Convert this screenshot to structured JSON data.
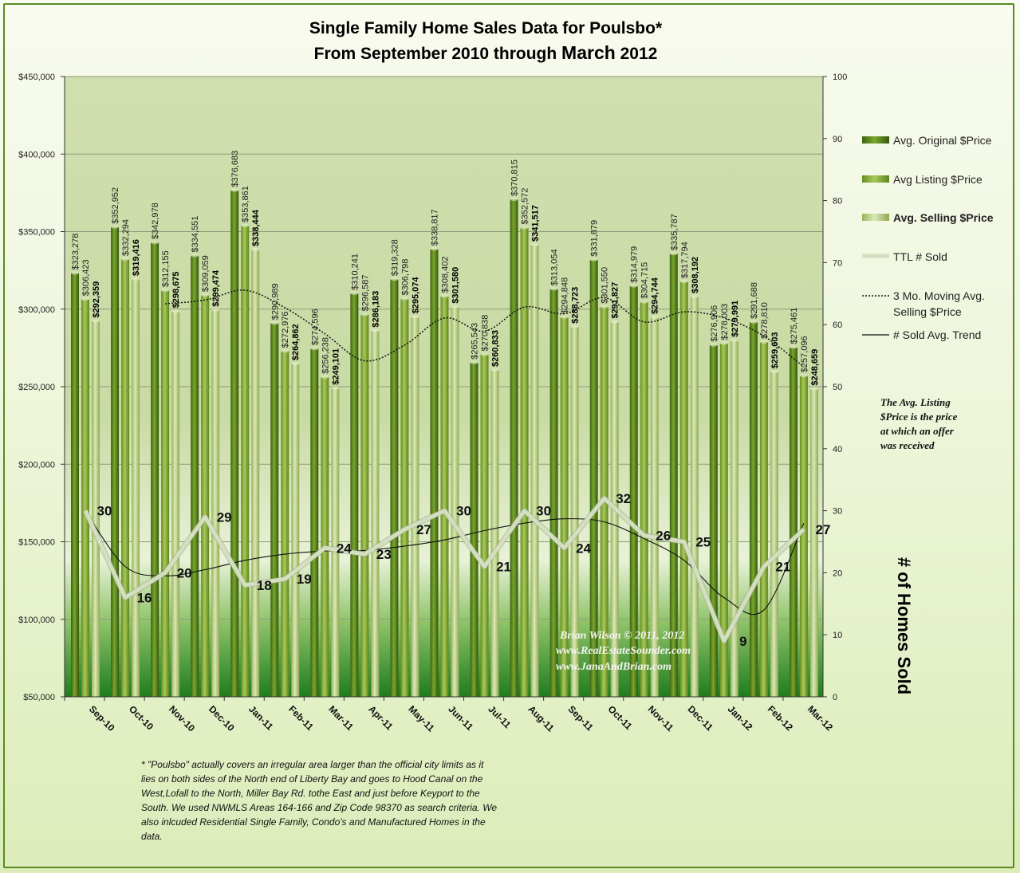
{
  "chart_data": {
    "type": "bar",
    "title_line1": "Single Family Home Sales Data for Poulsbo*",
    "title_line2_prefix": "From September 2010 through ",
    "title_line2_emph": "March",
    "title_line2_suffix": " 2012",
    "categories": [
      "Sep-10",
      "Oct-10",
      "Nov-10",
      "Dec-10",
      "Jan-11",
      "Feb-11",
      "Mar-11",
      "Apr-11",
      "May-11",
      "Jun-11",
      "Jul-11",
      "Aug-11",
      "Sep-11",
      "Oct-11",
      "Nov-11",
      "Dec-11",
      "Jan-12",
      "Feb-12",
      "Mar-12"
    ],
    "ylim_left": [
      50000,
      450000
    ],
    "yticks_left": [
      "$50,000",
      "$100,000",
      "$150,000",
      "$200,000",
      "$250,000",
      "$300,000",
      "$350,000",
      "$400,000",
      "$450,000"
    ],
    "ylim_right": [
      0,
      100
    ],
    "yticks_right": [
      "0",
      "10",
      "20",
      "30",
      "40",
      "50",
      "60",
      "70",
      "80",
      "90",
      "100"
    ],
    "ylabel_right": "# of Homes Sold",
    "grid": true,
    "legend_position": "right",
    "series": [
      {
        "name": "Avg. Original $Price",
        "color": "#5f8a1c",
        "values": [
          323278,
          352952,
          342978,
          334551,
          376683,
          290989,
          274596,
          310241,
          319328,
          338817,
          265543,
          370815,
          313054,
          331879,
          314979,
          335787,
          276906,
          291688,
          275461
        ],
        "labels": [
          "$323,278",
          "$352,952",
          "$342,978",
          "$334,551",
          "$376,683",
          "$290,989",
          "$274,596",
          "$310,241",
          "$319,328",
          "$338,817",
          "$265,543",
          "$370,815",
          "$313,054",
          "$331,879",
          "$314,979",
          "$335,787",
          "$276,906",
          "$291,688",
          "$275,461"
        ]
      },
      {
        "name": "Avg Listing $Price",
        "color": "#8fb43a",
        "values": [
          306423,
          332294,
          312155,
          309059,
          353861,
          272976,
          256238,
          296587,
          306798,
          308402,
          270838,
          352572,
          294848,
          301550,
          304715,
          317794,
          278003,
          278810,
          257096
        ],
        "labels": [
          "$306,423",
          "$332,294",
          "$312,155",
          "$309,059",
          "$353,861",
          "$272,976",
          "$256,238",
          "$296,587",
          "$306,798",
          "$308,402",
          "$270,838",
          "$352,572",
          "$294,848",
          "$301,550",
          "$304,715",
          "$317,794",
          "$278,003",
          "$278,810",
          "$257,096"
        ]
      },
      {
        "name": "Avg. Selling $Price",
        "color": "#c3d98a",
        "values": [
          292359,
          319416,
          298675,
          299474,
          338444,
          264862,
          249101,
          286183,
          295074,
          301580,
          260833,
          341517,
          288723,
          291827,
          294744,
          308192,
          279991,
          259603,
          248659
        ],
        "labels": [
          "$292,359",
          "$319,416",
          "$298,675",
          "$299,474",
          "$338,444",
          "$264,862",
          "$249,101",
          "$286,183",
          "$295,074",
          "$301,580",
          "$260,833",
          "$341,517",
          "$288,723",
          "$291,827",
          "$294,744",
          "$308,192",
          "$279,991",
          "$259,603",
          "$248,659"
        ]
      },
      {
        "name": "TTL # Sold",
        "axis": "right",
        "color": "#d4dec0",
        "values": [
          30,
          16,
          20,
          29,
          18,
          19,
          24,
          23,
          27,
          30,
          21,
          30,
          24,
          32,
          26,
          25,
          9,
          21,
          27
        ],
        "labels": [
          "30",
          "16",
          "20",
          "29",
          "18",
          "19",
          "24",
          "23",
          "27",
          "30",
          "21",
          "30",
          "24",
          "32",
          "26",
          "25",
          "9",
          "21",
          "27"
        ]
      },
      {
        "name": "3 Mo. Moving Avg. Selling $Price",
        "type": "dotted-line",
        "values": [
          null,
          null,
          303483,
          305855,
          312198,
          300927,
          284136,
          266715,
          276786,
          294279,
          285829,
          301310,
          297024,
          307356,
          291765,
          298254,
          294309,
          282595,
          262751
        ]
      },
      {
        "name": "# Sold Avg. Trend",
        "type": "line",
        "values": [
          30,
          21,
          19.5,
          20.5,
          22,
          23,
          23.5,
          23.6,
          24.3,
          25.3,
          26.8,
          28,
          28.7,
          28.2,
          25.5,
          22,
          16,
          14,
          28
        ]
      }
    ],
    "annotation": [
      "The Avg. Listing",
      "$Price is the price",
      "at which an offer",
      "was received"
    ],
    "watermark": [
      "Brian Wilson  © 2011, 2012",
      "www.RealEstateSounder.com",
      "www.JanaAndBrian.com"
    ],
    "footnote": [
      "* \"Poulsbo\"  actually covers an irregular area larger than the official city limits  as it",
      "lies on both sides of the North end of Liberty Bay and goes to Hood Canal on the",
      "West,Lofall to the North, Miller Bay Rd. tothe East and just before Keyport to the",
      "South.  We used NWMLS Areas 164-166  and Zip Code 98370  as search criteria.  We",
      "also inlcuded Residential Single Family, Condo's and Manufactured Homes in the",
      "data."
    ]
  }
}
